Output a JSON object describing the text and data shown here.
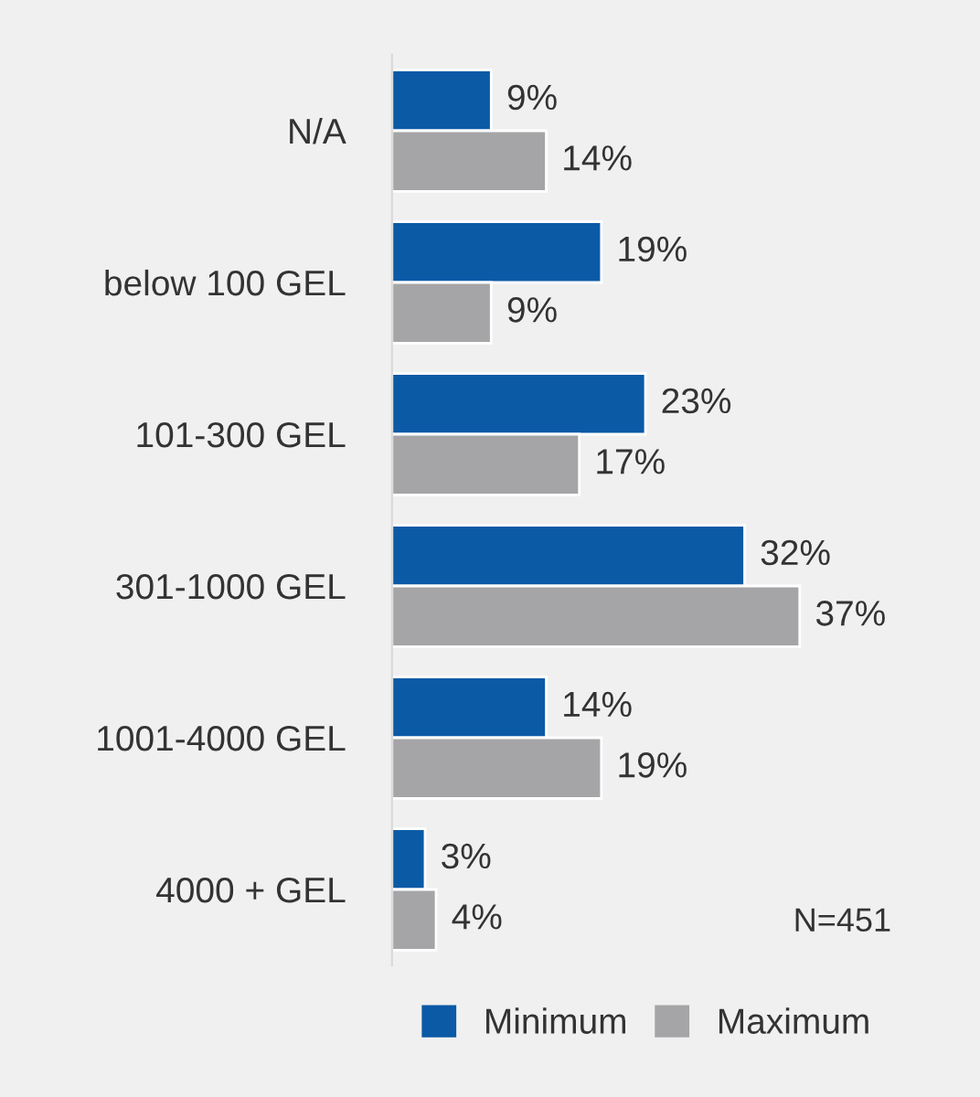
{
  "chart_data": {
    "type": "bar",
    "orientation": "horizontal",
    "categories": [
      "N/A",
      "below 100 GEL",
      "101-300 GEL",
      "301-1000 GEL",
      "1001-4000 GEL",
      "4000 + GEL"
    ],
    "series": [
      {
        "name": "Minimum",
        "color": "#0b5aa6",
        "values": [
          9,
          19,
          23,
          32,
          14,
          3
        ],
        "value_labels": [
          "9%",
          "19%",
          "23%",
          "32%",
          "14%",
          "3%"
        ]
      },
      {
        "name": "Maximum",
        "color": "#a5a5a7",
        "values": [
          14,
          9,
          17,
          37,
          19,
          4
        ],
        "value_labels": [
          "14%",
          "9%",
          "17%",
          "37%",
          "19%",
          "4%"
        ]
      }
    ],
    "legend": "bottom",
    "grid": false,
    "annotations": [
      "N=451"
    ]
  }
}
